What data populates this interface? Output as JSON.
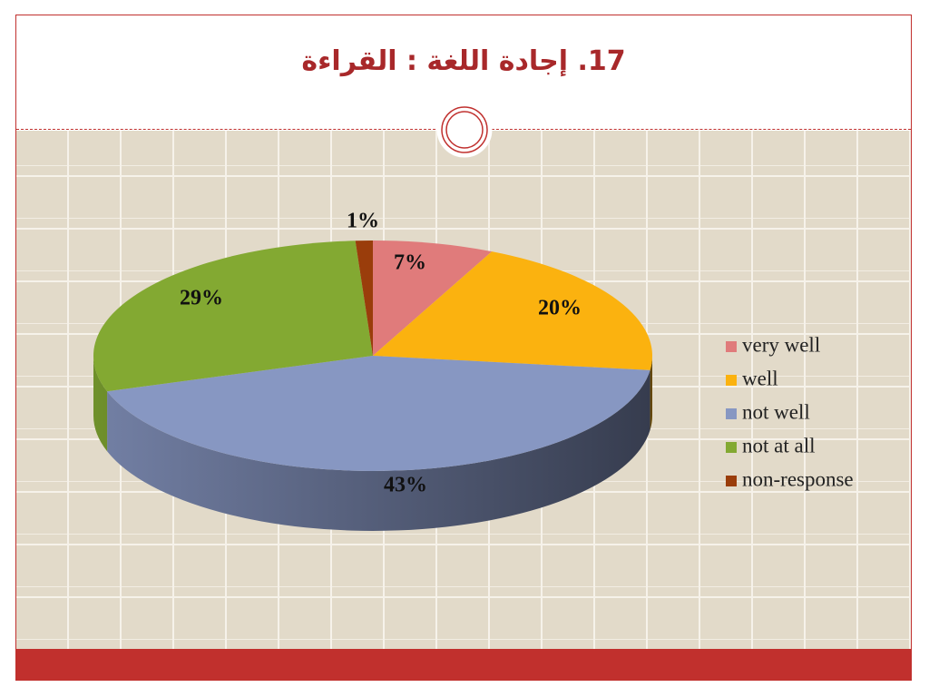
{
  "chart_data": {
    "type": "pie",
    "title": "17. إجادة اللغة : القراءة",
    "categories": [
      "very well",
      "well",
      "not well",
      "not at all",
      "non-response"
    ],
    "values": [
      7,
      20,
      43,
      29,
      1
    ],
    "value_labels": [
      "7%",
      "20%",
      "43%",
      "29%",
      "1%"
    ],
    "colors": [
      "#e07b7b",
      "#fbb20f",
      "#8797c2",
      "#83a932",
      "#9a3d0b"
    ],
    "legend": "right"
  }
}
